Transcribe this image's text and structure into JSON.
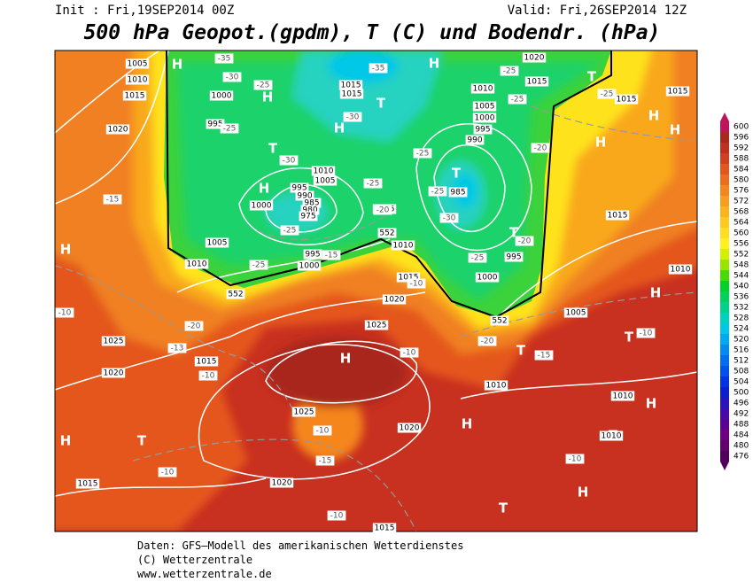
{
  "header": {
    "init": "Init : Fri,19SEP2014 00Z",
    "valid": "Valid: Fri,26SEP2014 12Z",
    "title": "500 hPa Geopot.(gpdm), T (C) und Bodendr. (hPa)"
  },
  "map": {
    "centers": [
      "H",
      "H",
      "H",
      "H",
      "H",
      "H",
      "H",
      "H",
      "H",
      "H",
      "H",
      "H",
      "H",
      "H",
      "H",
      "T",
      "T",
      "T",
      "T",
      "T",
      "T",
      "T",
      "T",
      "T",
      "T"
    ],
    "isobar_labels": [
      "1005",
      "1010",
      "1015",
      "1020",
      "1000",
      "995",
      "1015",
      "1015",
      "1010",
      "1005",
      "1000",
      "995",
      "990",
      "1010",
      "1005",
      "995",
      "990",
      "985",
      "980",
      "975",
      "1000",
      "1005",
      "1010",
      "995",
      "1000",
      "1005",
      "1010",
      "1015",
      "1020",
      "1025",
      "1025",
      "1020",
      "1015",
      "1025",
      "1020",
      "1020",
      "1015",
      "1015",
      "1010",
      "1010",
      "1010",
      "1005",
      "1000",
      "995",
      "985",
      "1010",
      "1015",
      "1015",
      "1015",
      "1020",
      "1015"
    ],
    "temperature_labels": [
      "-35",
      "-30",
      "-25",
      "-35",
      "-30",
      "-25",
      "-30",
      "-25",
      "-25",
      "-25",
      "-30",
      "-25",
      "-25",
      "-25",
      "-15",
      "-20",
      "-20",
      "-20",
      "-25",
      "-25",
      "-25",
      "-20",
      "-15",
      "-10",
      "-10",
      "-10",
      "-10",
      "-10",
      "-15",
      "-10",
      "-10",
      "-10",
      "-15",
      "-13",
      "-20",
      "-10"
    ],
    "height_labels": [
      "552",
      "552",
      "552"
    ]
  },
  "colorbar": {
    "ticks": [
      600,
      596,
      592,
      588,
      584,
      580,
      576,
      572,
      568,
      564,
      560,
      556,
      552,
      548,
      544,
      540,
      536,
      532,
      528,
      524,
      520,
      516,
      512,
      508,
      504,
      500,
      496,
      492,
      488,
      484,
      480,
      476
    ],
    "colors": [
      "#c0145a",
      "#a8281e",
      "#c0301e",
      "#d4401f",
      "#e4561e",
      "#ee6c1e",
      "#f5861e",
      "#f89e1e",
      "#fbb41e",
      "#fdca1e",
      "#fede1e",
      "#fff01e",
      "#d2f000",
      "#96e600",
      "#46dc00",
      "#00d228",
      "#00d25a",
      "#00d28c",
      "#00d2be",
      "#00c8e6",
      "#00aaf0",
      "#008cf0",
      "#006ef0",
      "#0050f0",
      "#0032e6",
      "#0a1ed2",
      "#2814be",
      "#460aaa",
      "#5a0096",
      "#6e0082",
      "#64006e",
      "#50005a"
    ]
  },
  "footer": {
    "line1": "Daten: GFS–Modell des amerikanischen Wetterdienstes",
    "line2": "(C) Wetterzentrale",
    "line3": "www.wetterzentrale.de"
  }
}
